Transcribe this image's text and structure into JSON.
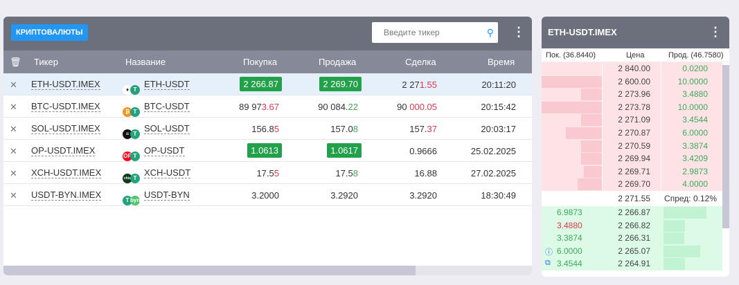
{
  "toolbar": {
    "category_label": "КРИПТОВАЛЮТЫ",
    "search_placeholder": "Введите тикер",
    "search_icon": "search-icon",
    "menu_icon": "kebab-icon"
  },
  "table": {
    "columns": {
      "delete_icon": "trash-icon",
      "ticker": "Тикер",
      "name": "Название",
      "bid": "Покупка",
      "ask": "Продажа",
      "last": "Сделка",
      "time": "Время"
    },
    "rows": [
      {
        "ticker": "ETH-USDT.IMEX",
        "name": "ETH-USDT",
        "coin_color": "#ffffff",
        "coin_glyph": "♦",
        "bid": {
          "main": "2 266.87",
          "tail": "",
          "badge": true
        },
        "ask": {
          "main": "2 269.70",
          "tail": "",
          "badge": true
        },
        "last": {
          "main": "2 27",
          "tail": "1.55",
          "color": "#e0384b"
        },
        "time": "20:11:20",
        "selected": true
      },
      {
        "ticker": "BTC-USDT.IMEX",
        "name": "BTC-USDT",
        "coin_color": "#f7931a",
        "coin_glyph": "₿",
        "bid": {
          "main": "89 97",
          "tail": "3.67",
          "color": "#e0384b"
        },
        "ask": {
          "main": "90 084.",
          "tail": "22",
          "color": "#3daa5c"
        },
        "last": {
          "main": "90 ",
          "tail": "000.05",
          "color": "#e0384b"
        },
        "time": "20:15:42"
      },
      {
        "ticker": "SOL-USDT.IMEX",
        "name": "SOL-USDT",
        "coin_color": "#111111",
        "coin_glyph": "≡",
        "bid": {
          "main": "156.8",
          "tail": "5",
          "color": "#e0384b"
        },
        "ask": {
          "main": "157.0",
          "tail": "8",
          "color": "#3daa5c"
        },
        "last": {
          "main": "157.",
          "tail": "37",
          "color": "#e0384b"
        },
        "time": "20:03:17"
      },
      {
        "ticker": "OP-USDT.IMEX",
        "name": "OP-USDT",
        "coin_color": "#ff0420",
        "coin_glyph": "OP",
        "bid": {
          "main": "1.0613",
          "tail": "",
          "badge": true
        },
        "ask": {
          "main": "1.0617",
          "tail": "",
          "badge": true
        },
        "last": {
          "main": "0.9666",
          "tail": ""
        },
        "time": "25.02.2025"
      },
      {
        "ticker": "XCH-USDT.IMEX",
        "name": "XCH-USDT",
        "coin_color": "#0d3b1a",
        "coin_glyph": "chia",
        "bid": {
          "main": "17.5",
          "tail": "5",
          "color": "#e0384b"
        },
        "ask": {
          "main": "17.5",
          "tail": "8",
          "color": "#3daa5c"
        },
        "last": {
          "main": "16.88",
          "tail": ""
        },
        "time": "27.02.2025"
      },
      {
        "ticker": "USDT-BYN.IMEX",
        "name": "USDT-BYN",
        "coin_color": "#26a17b",
        "coin_glyph": "T",
        "bid": {
          "main": "3.2000",
          "tail": ""
        },
        "ask": {
          "main": "3.2920",
          "tail": ""
        },
        "last": {
          "main": "3.2920",
          "tail": ""
        },
        "time": "18:30:49"
      }
    ]
  },
  "orderbook": {
    "title": "ETH-USDT.IMEX",
    "bid_header": "Пок. (36.8440)",
    "price_header": "Цена",
    "ask_header": "Прод. (46.7580)",
    "asks": [
      {
        "price": "2 840.00",
        "qty": "0.0200",
        "depth": 0
      },
      {
        "price": "2 600.00",
        "qty": "10.0000",
        "depth": 100
      },
      {
        "price": "2 273.96",
        "qty": "3.4880",
        "depth": 35
      },
      {
        "price": "2 273.78",
        "qty": "10.0000",
        "depth": 100
      },
      {
        "price": "2 271.09",
        "qty": "3.4544",
        "depth": 35
      },
      {
        "price": "2 270.87",
        "qty": "6.0000",
        "depth": 60
      },
      {
        "price": "2 270.59",
        "qty": "3.3874",
        "depth": 34
      },
      {
        "price": "2 269.94",
        "qty": "3.4209",
        "depth": 34
      },
      {
        "price": "2 269.71",
        "qty": "2.9873",
        "depth": 30
      },
      {
        "price": "2 269.70",
        "qty": "4.0000",
        "depth": 40
      }
    ],
    "mid_price": "2 271.55",
    "spread": "Спред: 0.12%",
    "bids": [
      {
        "price": "2 266.87",
        "qty": "6.9873",
        "qty_color": "#3daa5c",
        "depth": 70
      },
      {
        "price": "2 266.82",
        "qty": "3.4880",
        "qty_color": "#e0384b",
        "depth": 35
      },
      {
        "price": "2 266.31",
        "qty": "3.3874",
        "qty_color": "#3daa5c",
        "depth": 34
      },
      {
        "price": "2 265.07",
        "qty": "6.0000",
        "qty_color": "#3daa5c",
        "depth": 60
      },
      {
        "price": "2 264.91",
        "qty": "3.4544",
        "qty_color": "#3daa5c",
        "depth": 35
      }
    ],
    "side_icons": [
      "info-icon",
      "external-link-icon"
    ]
  }
}
